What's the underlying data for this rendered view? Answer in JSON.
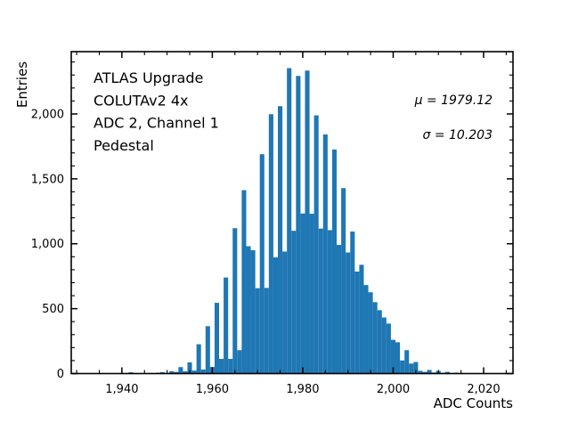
{
  "chart_data": {
    "type": "bar",
    "subtype": "histogram",
    "title": "",
    "xlabel": "ADC Counts",
    "ylabel": "Entries",
    "info_lines": [
      "ATLAS Upgrade",
      "COLUTAv2 4x",
      "ADC 2, Channel 1",
      "Pedestal"
    ],
    "stats": {
      "mu_label": "μ = 1979.12",
      "sigma_label": "σ = 10.203",
      "mu": 1979.12,
      "sigma": 10.203
    },
    "bar_color": "#1f77b4",
    "frame_color": "#000000",
    "xlim": [
      1928.8,
      2026.5
    ],
    "ylim": [
      0,
      2480
    ],
    "grid": false,
    "legend": "none",
    "tick_style": "inward, mirrored on all four sides, minor ticks shown",
    "x_major_ticks": [
      1940,
      1960,
      1980,
      2000,
      2020
    ],
    "x_tick_labels": [
      "1,940",
      "1,960",
      "1,980",
      "2,000",
      "2,020"
    ],
    "x_minor_step": 5,
    "y_major_ticks": [
      0,
      500,
      1000,
      1500,
      2000
    ],
    "y_tick_labels": [
      "0",
      "500",
      "1,000",
      "1,500",
      "2,000"
    ],
    "y_minor_step": 100,
    "bin_width": 1,
    "bin_centers": [
      1942,
      1943,
      1944,
      1945,
      1946,
      1947,
      1948,
      1949,
      1950,
      1951,
      1952,
      1953,
      1954,
      1955,
      1956,
      1957,
      1958,
      1959,
      1960,
      1961,
      1962,
      1963,
      1964,
      1965,
      1966,
      1967,
      1968,
      1969,
      1970,
      1971,
      1972,
      1973,
      1974,
      1975,
      1976,
      1977,
      1978,
      1979,
      1980,
      1981,
      1982,
      1983,
      1984,
      1985,
      1986,
      1987,
      1988,
      1989,
      1990,
      1991,
      1992,
      1993,
      1994,
      1995,
      1996,
      1997,
      1998,
      1999,
      2000,
      2001,
      2002,
      2003,
      2004,
      2005,
      2006,
      2007,
      2008,
      2009,
      2010,
      2011,
      2012,
      2013,
      2014,
      2015,
      2016
    ],
    "counts": [
      10,
      4,
      0,
      0,
      4,
      0,
      7,
      11,
      5,
      18,
      13,
      50,
      18,
      86,
      23,
      226,
      31,
      365,
      51,
      545,
      113,
      740,
      113,
      1120,
      180,
      1413,
      981,
      950,
      658,
      1690,
      660,
      1998,
      895,
      2060,
      940,
      2353,
      1100,
      2293,
      1233,
      2334,
      1231,
      1989,
      1117,
      1842,
      1105,
      1726,
      991,
      1429,
      933,
      1094,
      786,
      838,
      682,
      626,
      550,
      488,
      432,
      385,
      260,
      241,
      101,
      180,
      77,
      89,
      21,
      13,
      28,
      8,
      21,
      6,
      13,
      4,
      7,
      2,
      3
    ]
  }
}
